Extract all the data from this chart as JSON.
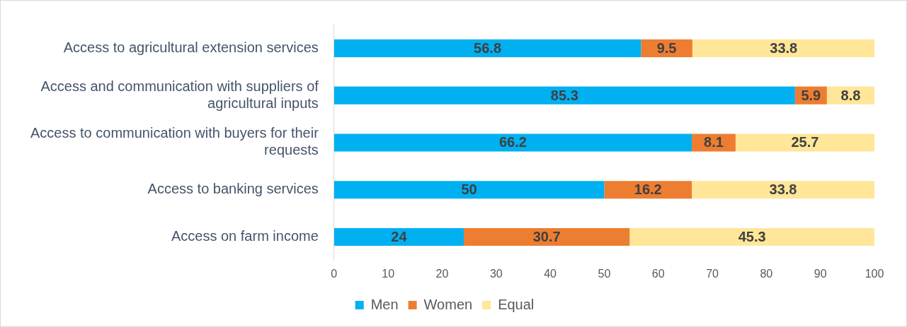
{
  "chart_data": {
    "type": "bar",
    "orientation": "horizontal",
    "stacked": true,
    "categories": [
      "Access to agricultural extension services",
      "Access and communication with suppliers of agricultural inputs",
      "Access to communication with buyers for their requests",
      "Access to banking services",
      "Access on farm income"
    ],
    "series": [
      {
        "name": "Men",
        "color": "#00b0f0",
        "values": [
          56.8,
          85.3,
          66.2,
          50,
          24
        ]
      },
      {
        "name": "Women",
        "color": "#ed7d31",
        "values": [
          9.5,
          5.9,
          8.1,
          16.2,
          30.7
        ]
      },
      {
        "name": "Equal",
        "color": "#ffe699",
        "values": [
          33.8,
          8.8,
          25.7,
          33.8,
          45.3
        ]
      }
    ],
    "xlim": [
      0,
      100
    ],
    "xticks": [
      0,
      10,
      20,
      30,
      40,
      50,
      60,
      70,
      80,
      90,
      100
    ],
    "grid": false,
    "legend": "bottom",
    "data_labels": true
  }
}
